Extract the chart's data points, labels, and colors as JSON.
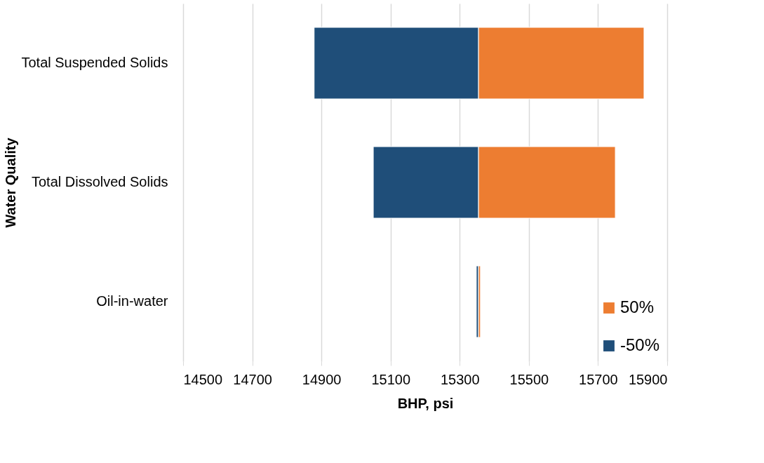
{
  "chart_data": {
    "type": "bar",
    "orientation": "horizontal",
    "xlabel": "BHP, psi",
    "ylabel": "Water Quality",
    "categories": [
      "Total Suspended Solids",
      "Total Dissolved Solids",
      "Oil-in-water"
    ],
    "series": [
      {
        "name": "50%",
        "color": "#ed7d31",
        "values": [
          479,
          396,
          6
        ],
        "base": [
          15354,
          15354,
          15354
        ]
      },
      {
        "name": "-50%",
        "color": "#1f4e79",
        "values": [
          -475,
          -304,
          -6
        ],
        "base": [
          15354,
          15354,
          15354
        ]
      }
    ],
    "xlim": [
      14500,
      15900
    ],
    "xticks": [
      14500,
      14700,
      14900,
      15100,
      15300,
      15500,
      15700,
      15900
    ],
    "grid": "x",
    "legend": "bottom right"
  }
}
